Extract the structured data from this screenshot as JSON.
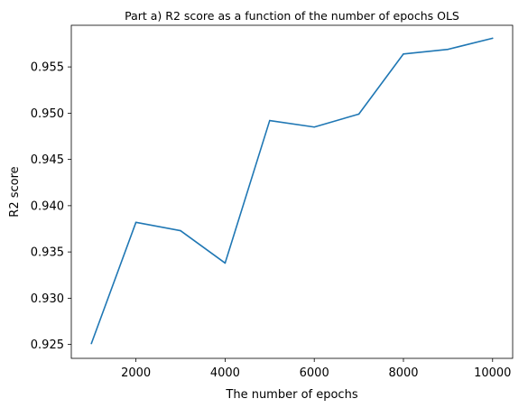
{
  "chart_data": {
    "type": "line",
    "title": "Part a) R2 score as a function of the number of epochs OLS",
    "xlabel": "The number of epochs",
    "ylabel": "R2 score",
    "xlim": [
      550,
      10450
    ],
    "ylim": [
      0.9235,
      0.9595
    ],
    "xticks": [
      2000,
      4000,
      6000,
      8000,
      10000
    ],
    "yticks": [
      0.925,
      0.93,
      0.935,
      0.94,
      0.945,
      0.95,
      0.955
    ],
    "grid": false,
    "legend": "none",
    "series": [
      {
        "color": "#1f77b4",
        "x": [
          1000,
          2000,
          3000,
          4000,
          5000,
          6000,
          7000,
          8000,
          9000,
          10000
        ],
        "y": [
          0.9251,
          0.9382,
          0.9373,
          0.9338,
          0.9492,
          0.9485,
          0.9499,
          0.9564,
          0.9569,
          0.9581
        ]
      }
    ]
  }
}
